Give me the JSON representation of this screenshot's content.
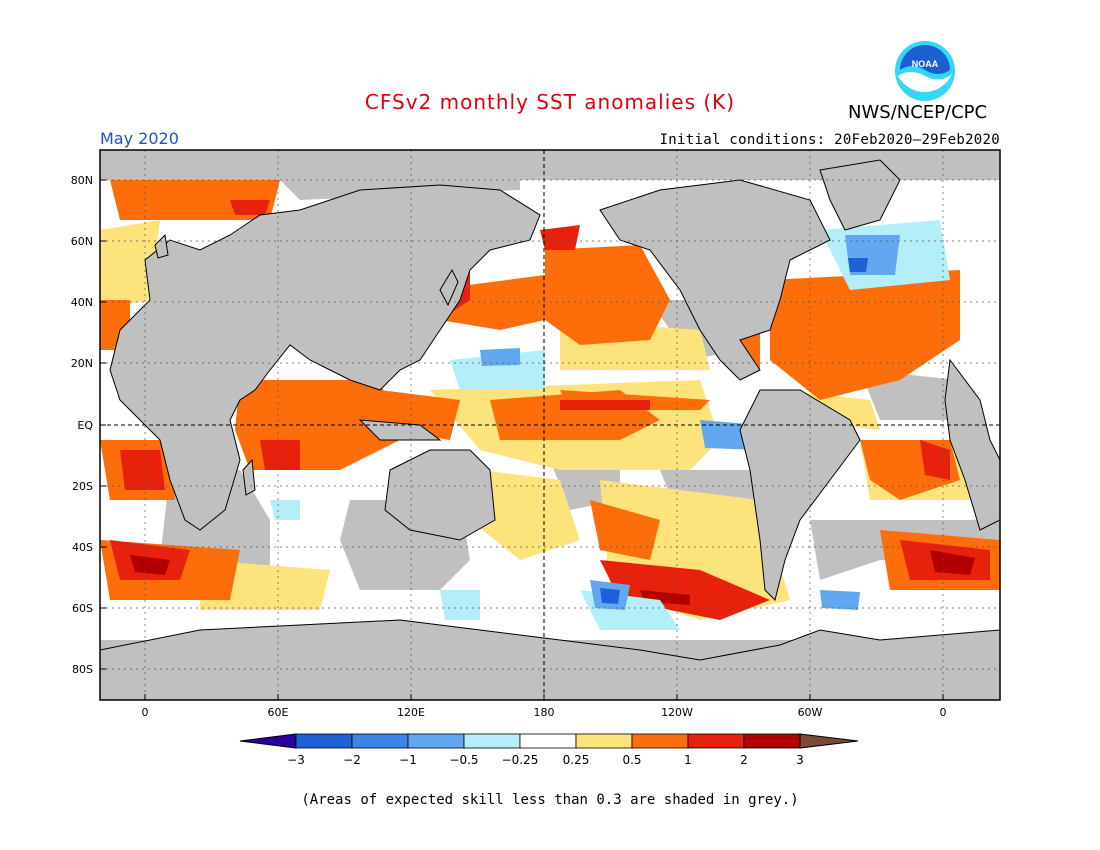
{
  "header": {
    "title": "CFSv2 monthly SST anomalies (K)",
    "agency": "NWS/NCEP/CPC",
    "logo_text": "NOAA",
    "month": "May 2020",
    "initial_conditions": "Initial conditions: 20Feb2020–29Feb2020"
  },
  "colors": {
    "title": "#e0000a",
    "month": "#1a4fe0",
    "land": "#c0c0c0",
    "noskill": "#c0c0c0",
    "logo_blue": "#1c5fd1",
    "logo_cyan": "#34d7f7"
  },
  "map": {
    "lat_labels": [
      "80N",
      "60N",
      "40N",
      "20N",
      "EQ",
      "20S",
      "40S",
      "60S",
      "80S"
    ],
    "lon_labels": [
      "0",
      "60E",
      "120E",
      "180",
      "120W",
      "60W",
      "0"
    ]
  },
  "legend": {
    "labels": [
      "−3",
      "−2",
      "−1",
      "−0.5",
      "−0.25",
      "0.25",
      "0.5",
      "1",
      "2",
      "3"
    ],
    "colors": [
      "#2c00a0",
      "#1e60d8",
      "#3a86e8",
      "#62a8f0",
      "#b4eef8",
      "#ffffff",
      "#fde37c",
      "#fd6d0a",
      "#e8210c",
      "#b20000",
      "#7a4a38"
    ]
  },
  "footer": {
    "note": "(Areas of expected skill less than 0.3 are shaded in grey.)"
  }
}
